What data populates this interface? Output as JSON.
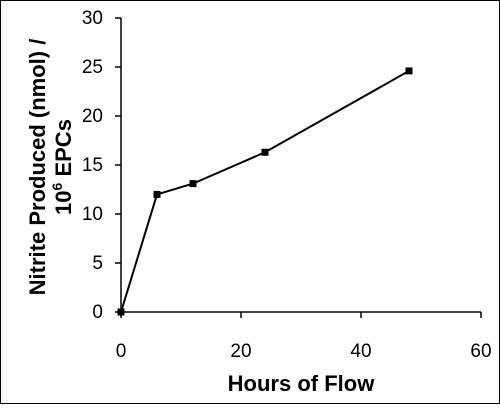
{
  "chart_data": {
    "type": "line",
    "title": "",
    "xlabel": "Hours of Flow",
    "ylabel_line1": "Nitrite Produced (nmol) /",
    "ylabel_line2_base": "10",
    "ylabel_line2_sup": "6",
    "ylabel_line2_rest": " EPCs",
    "xlim": [
      0,
      60
    ],
    "ylim": [
      0,
      30
    ],
    "xticks": [
      0,
      20,
      40,
      60
    ],
    "yticks": [
      0,
      5,
      10,
      15,
      20,
      25,
      30
    ],
    "x": [
      0,
      6,
      12,
      24,
      48
    ],
    "y": [
      0,
      12,
      13.1,
      16.3,
      24.6
    ],
    "grid": false,
    "legend": "none",
    "line_color": "#000000",
    "marker": "square"
  }
}
